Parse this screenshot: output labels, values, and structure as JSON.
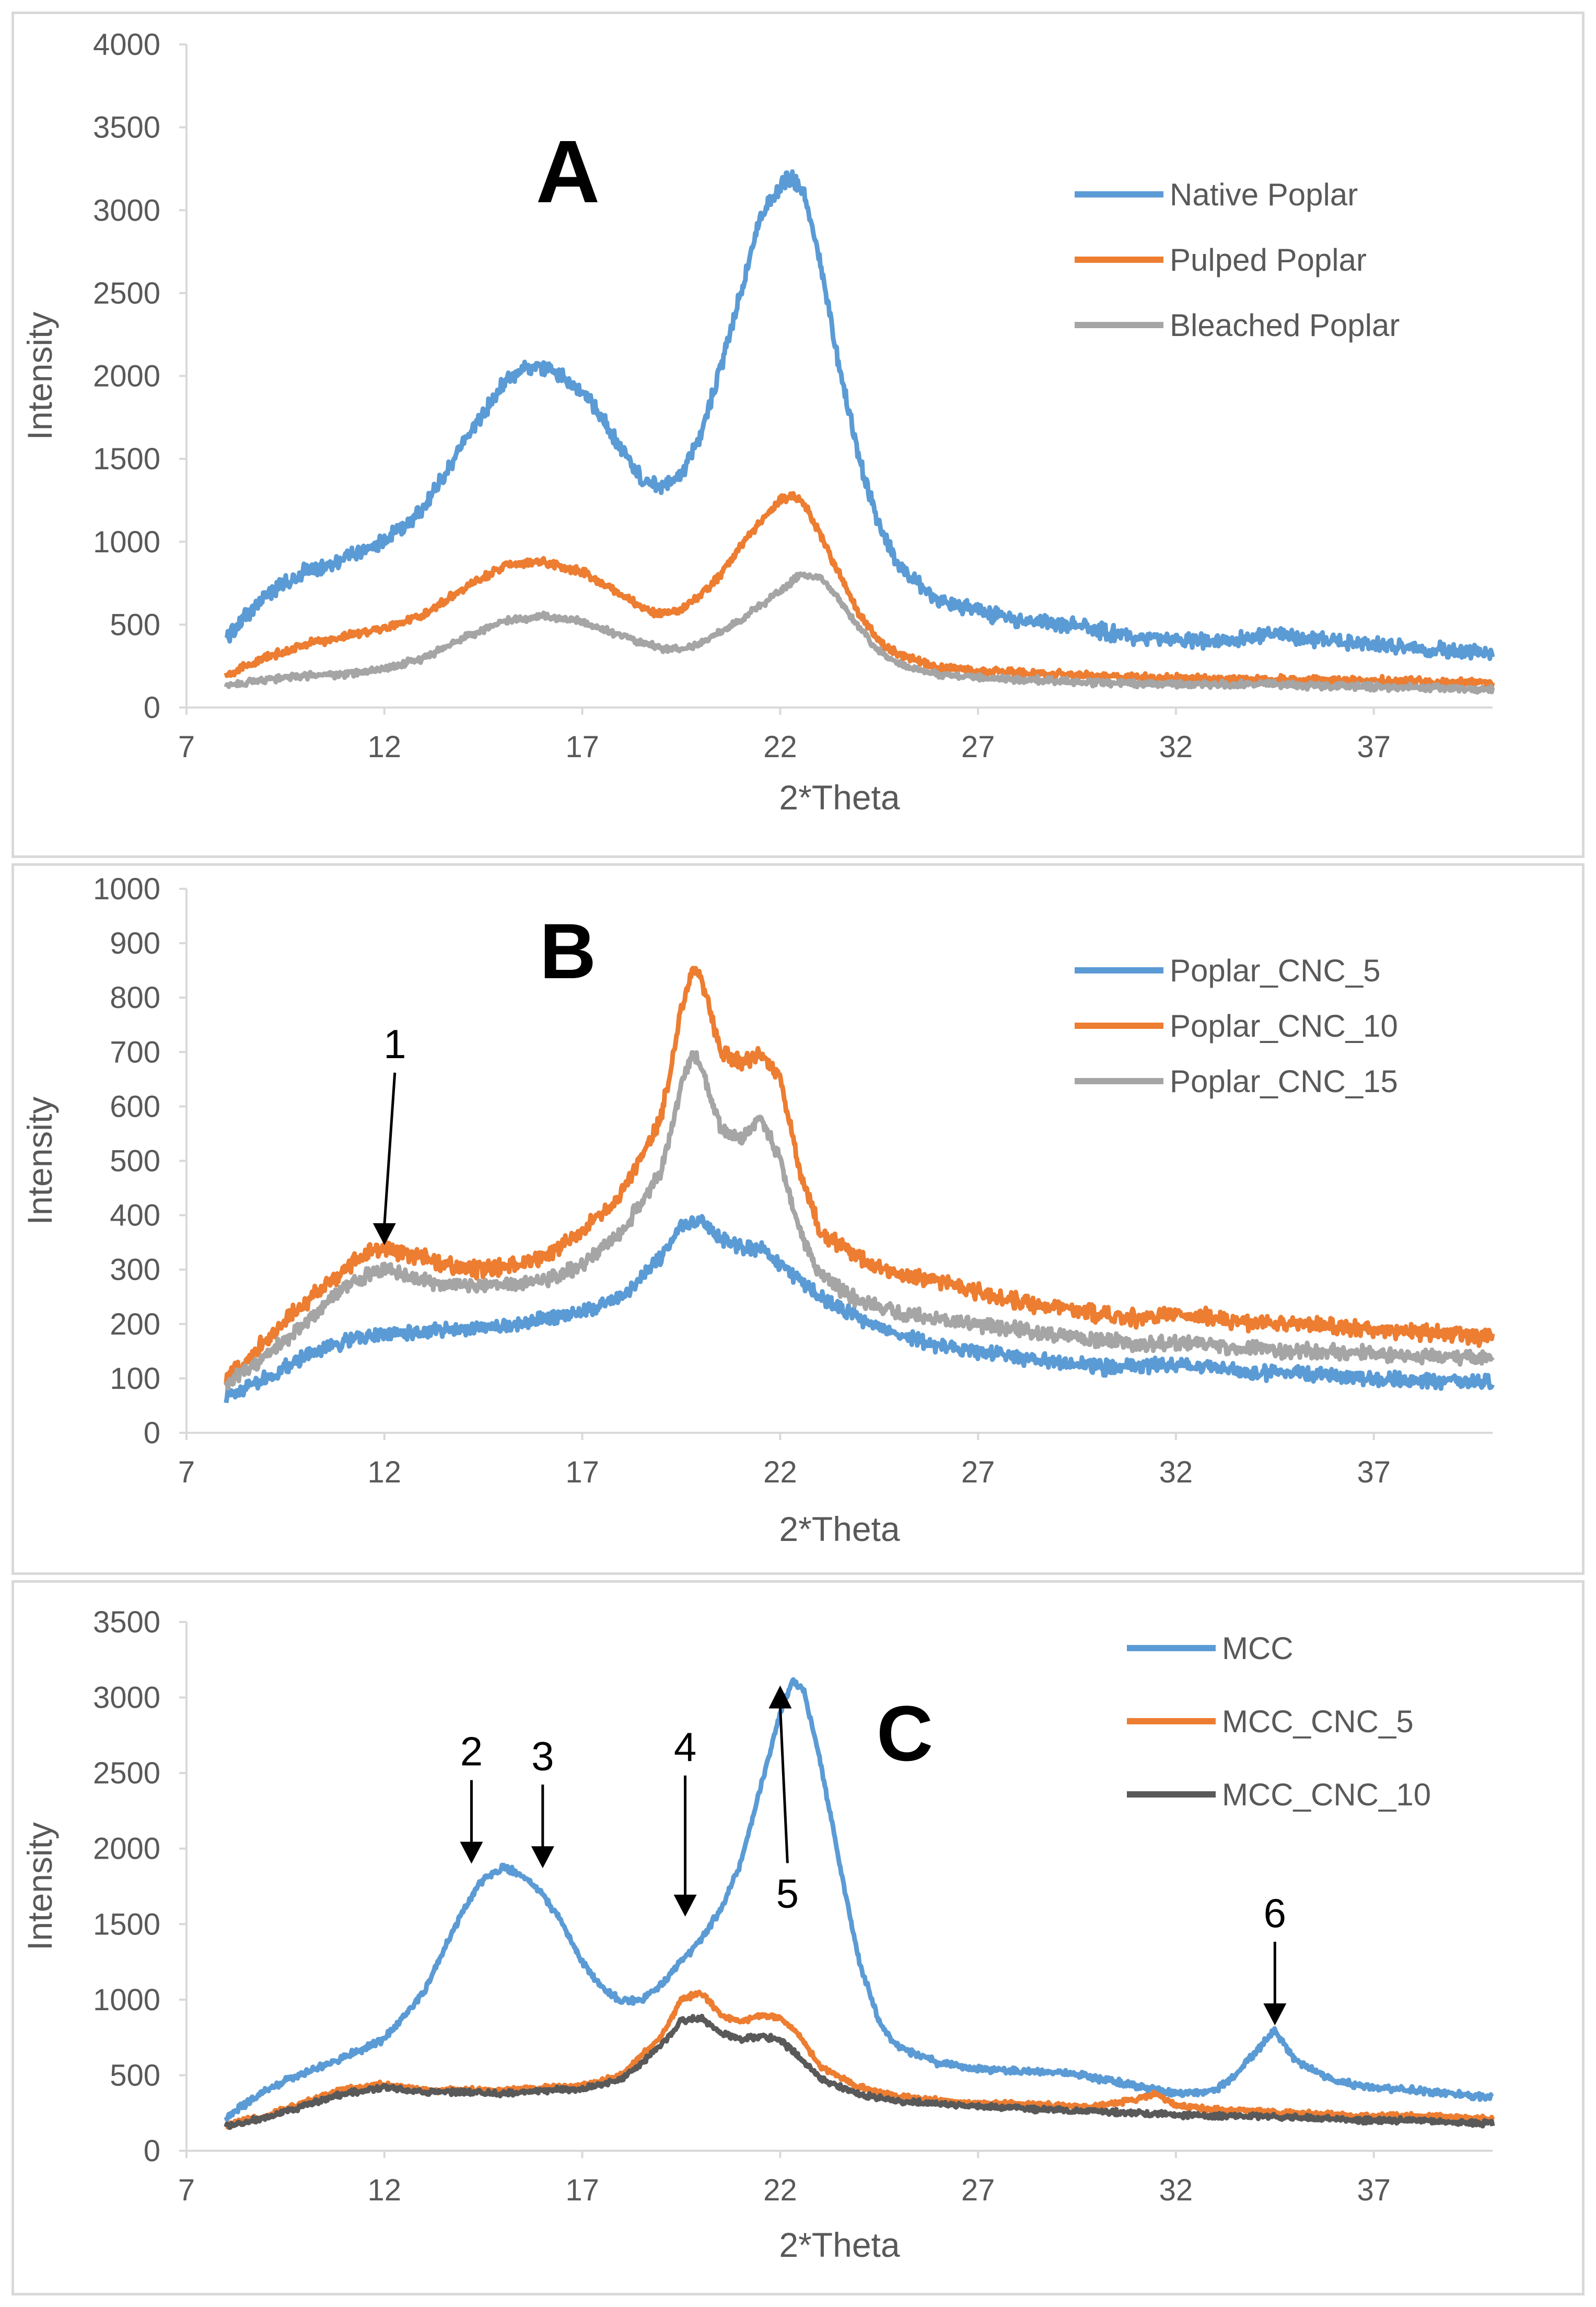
{
  "chart_data": [
    {
      "id": "A",
      "type": "line",
      "panel_label": "A",
      "xlabel": "2*Theta",
      "ylabel": "Intensity",
      "xlim": [
        7,
        40
      ],
      "ylim": [
        0,
        4000
      ],
      "xticks": [
        7,
        12,
        17,
        22,
        27,
        32,
        37
      ],
      "yticks": [
        0,
        500,
        1000,
        1500,
        2000,
        2500,
        3000,
        3500,
        4000
      ],
      "legend_position": "top-right",
      "series": [
        {
          "name": "Native Poplar",
          "color": "#5B9BD5",
          "noise": 55,
          "x": [
            8,
            9,
            10,
            11,
            12,
            13,
            14,
            15,
            15.5,
            16,
            16.5,
            17,
            17.5,
            18,
            18.5,
            19,
            19.5,
            20,
            20.5,
            21,
            21.5,
            22,
            22.3,
            22.6,
            23,
            23.5,
            24,
            24.5,
            25,
            26,
            27,
            28,
            29,
            30,
            31,
            32,
            33,
            34,
            34.5,
            35,
            36,
            37,
            38,
            39,
            40
          ],
          "y": [
            420,
            680,
            820,
            900,
            1000,
            1200,
            1600,
            1950,
            2050,
            2050,
            2000,
            1900,
            1750,
            1550,
            1380,
            1320,
            1400,
            1650,
            2050,
            2500,
            2950,
            3150,
            3200,
            3100,
            2700,
            2050,
            1500,
            1100,
            850,
            650,
            580,
            530,
            510,
            470,
            420,
            400,
            400,
            420,
            450,
            430,
            400,
            380,
            350,
            340,
            330
          ]
        },
        {
          "name": "Pulped Poplar",
          "color": "#ED7D31",
          "noise": 28,
          "x": [
            8,
            9,
            10,
            11,
            12,
            13,
            14,
            15,
            16,
            17,
            18,
            18.5,
            19,
            19.5,
            20,
            20.5,
            21,
            21.5,
            22,
            22.3,
            22.6,
            23,
            23.5,
            24,
            24.5,
            25,
            26,
            27,
            28,
            30,
            32,
            34,
            36,
            38,
            40
          ],
          "y": [
            200,
            300,
            380,
            430,
            480,
            560,
            720,
            850,
            880,
            820,
            680,
            600,
            560,
            590,
            680,
            800,
            980,
            1120,
            1250,
            1280,
            1230,
            1050,
            800,
            560,
            400,
            320,
            240,
            220,
            210,
            190,
            175,
            170,
            165,
            160,
            150
          ]
        },
        {
          "name": "Bleached Poplar",
          "color": "#A5A5A5",
          "noise": 24,
          "x": [
            8,
            9,
            10,
            11,
            12,
            13,
            14,
            15,
            16,
            17,
            18,
            19,
            19.5,
            20,
            21,
            22,
            22.5,
            23,
            23.5,
            24,
            24.5,
            25,
            26,
            27,
            28,
            30,
            32,
            34,
            36,
            38,
            40
          ],
          "y": [
            130,
            170,
            190,
            200,
            230,
            300,
            420,
            520,
            550,
            520,
            430,
            360,
            350,
            390,
            530,
            700,
            800,
            790,
            650,
            480,
            340,
            260,
            200,
            180,
            170,
            150,
            140,
            140,
            130,
            120,
            110
          ]
        }
      ]
    },
    {
      "id": "B",
      "type": "line",
      "panel_label": "B",
      "xlabel": "2*Theta",
      "ylabel": "Intensity",
      "xlim": [
        7,
        40
      ],
      "ylim": [
        0,
        1000
      ],
      "xticks": [
        7,
        12,
        17,
        22,
        27,
        32,
        37
      ],
      "yticks": [
        0,
        100,
        200,
        300,
        400,
        500,
        600,
        700,
        800,
        900,
        1000
      ],
      "legend_position": "top-right",
      "annotations": [
        {
          "label": "1",
          "x": 12,
          "y": 345
        }
      ],
      "series": [
        {
          "name": "Poplar_CNC_5",
          "color": "#5B9BD5",
          "noise": 16,
          "x": [
            8,
            9,
            10,
            11,
            12,
            13,
            14,
            15,
            16,
            17,
            18,
            19,
            19.5,
            20,
            20.5,
            21,
            21.5,
            22,
            22.5,
            23,
            24,
            25,
            26,
            27,
            28,
            29,
            30,
            31,
            32,
            33,
            34,
            35,
            36,
            37,
            38,
            39,
            40
          ],
          "y": [
            70,
            100,
            140,
            170,
            180,
            185,
            190,
            195,
            210,
            220,
            250,
            320,
            380,
            390,
            360,
            340,
            340,
            310,
            280,
            250,
            210,
            180,
            160,
            150,
            140,
            130,
            120,
            120,
            125,
            120,
            110,
            110,
            105,
            100,
            95,
            95,
            90
          ]
        },
        {
          "name": "Poplar_CNC_10",
          "color": "#ED7D31",
          "noise": 18,
          "x": [
            8,
            9,
            10,
            11,
            11.5,
            12,
            13,
            14,
            15,
            16,
            17,
            18,
            19,
            19.5,
            19.8,
            20,
            20.5,
            21,
            21.5,
            22,
            22.5,
            23,
            24,
            25,
            26,
            27,
            28,
            29,
            30,
            31,
            32,
            33,
            34,
            35,
            36,
            37,
            38,
            39,
            40
          ],
          "y": [
            100,
            170,
            240,
            300,
            330,
            340,
            320,
            300,
            305,
            320,
            370,
            440,
            580,
            780,
            860,
            840,
            700,
            680,
            700,
            650,
            480,
            370,
            320,
            290,
            280,
            260,
            240,
            230,
            220,
            210,
            220,
            210,
            200,
            200,
            195,
            190,
            185,
            180,
            175
          ]
        },
        {
          "name": "Poplar_CNC_15",
          "color": "#A5A5A5",
          "noise": 16,
          "x": [
            8,
            9,
            10,
            11,
            12,
            13,
            14,
            15,
            16,
            17,
            18,
            19,
            19.5,
            19.8,
            20,
            20.5,
            21,
            21.5,
            22,
            22.5,
            23,
            24,
            25,
            26,
            27,
            28,
            29,
            30,
            31,
            32,
            33,
            34,
            35,
            36,
            37,
            38,
            39,
            40
          ],
          "y": [
            90,
            140,
            200,
            270,
            300,
            280,
            270,
            270,
            280,
            310,
            370,
            480,
            640,
            700,
            670,
            560,
            540,
            580,
            500,
            370,
            290,
            240,
            220,
            210,
            200,
            190,
            180,
            170,
            165,
            165,
            160,
            155,
            150,
            150,
            145,
            140,
            140,
            135
          ]
        }
      ]
    },
    {
      "id": "C",
      "type": "line",
      "panel_label": "C",
      "xlabel": "2*Theta",
      "ylabel": "Intensity",
      "xlim": [
        7,
        40
      ],
      "ylim": [
        0,
        3500
      ],
      "xticks": [
        7,
        12,
        17,
        22,
        27,
        32,
        37
      ],
      "yticks": [
        0,
        500,
        1000,
        1500,
        2000,
        2500,
        3000,
        3500
      ],
      "legend_position": "top-right",
      "annotations": [
        {
          "label": "2",
          "x": 14.2,
          "y": 1900
        },
        {
          "label": "3",
          "x": 16.0,
          "y": 1870
        },
        {
          "label": "4",
          "x": 19.6,
          "y": 1550
        },
        {
          "label": "5",
          "x": 22.0,
          "y": 3080
        },
        {
          "label": "6",
          "x": 34.5,
          "y": 830
        }
      ],
      "series": [
        {
          "name": "MCC",
          "color": "#5B9BD5",
          "noise": 26,
          "x": [
            8,
            9,
            10,
            11,
            12,
            13,
            14,
            14.5,
            15,
            15.5,
            16,
            16.5,
            17,
            17.5,
            18,
            18.5,
            19,
            19.5,
            20,
            20.5,
            21,
            21.5,
            22,
            22.3,
            22.6,
            23,
            23.5,
            24,
            24.5,
            25,
            26,
            27,
            28,
            29,
            30,
            31,
            32,
            33,
            33.5,
            34,
            34.5,
            35,
            36,
            37,
            38,
            39,
            40
          ],
          "y": [
            220,
            400,
            520,
            620,
            740,
            1050,
            1600,
            1800,
            1880,
            1820,
            1700,
            1500,
            1250,
            1080,
            990,
            1000,
            1100,
            1250,
            1400,
            1600,
            1900,
            2400,
            2900,
            3100,
            3050,
            2600,
            1900,
            1250,
            850,
            680,
            580,
            540,
            530,
            520,
            480,
            430,
            380,
            400,
            500,
            650,
            800,
            600,
            460,
            420,
            400,
            380,
            350
          ]
        },
        {
          "name": "MCC_CNC_5",
          "color": "#ED7D31",
          "noise": 22,
          "x": [
            8,
            9,
            10,
            11,
            12,
            13,
            14,
            15,
            16,
            17,
            18,
            19,
            19.5,
            20,
            20.5,
            21,
            21.5,
            22,
            22.5,
            23,
            24,
            25,
            26,
            27,
            28,
            29,
            30,
            31,
            31.5,
            32,
            33,
            34,
            35,
            36,
            37,
            38,
            39,
            40
          ],
          "y": [
            170,
            230,
            320,
            410,
            440,
            400,
            400,
            400,
            420,
            430,
            500,
            760,
            1000,
            1050,
            900,
            850,
            900,
            880,
            760,
            560,
            420,
            360,
            330,
            310,
            310,
            300,
            290,
            340,
            380,
            300,
            270,
            260,
            250,
            240,
            230,
            230,
            220,
            210
          ]
        },
        {
          "name": "MCC_CNC_10",
          "color": "#595959",
          "noise": 22,
          "x": [
            8,
            9,
            10,
            11,
            12,
            13,
            14,
            15,
            16,
            17,
            18,
            19,
            19.5,
            20,
            20.5,
            21,
            21.5,
            22,
            22.5,
            23,
            24,
            25,
            26,
            27,
            28,
            29,
            30,
            31,
            32,
            33,
            34,
            35,
            36,
            37,
            38,
            39,
            40
          ],
          "y": [
            160,
            220,
            300,
            380,
            420,
            390,
            390,
            380,
            400,
            410,
            470,
            700,
            860,
            880,
            780,
            740,
            760,
            730,
            620,
            480,
            370,
            330,
            310,
            290,
            280,
            270,
            260,
            250,
            240,
            230,
            230,
            220,
            210,
            200,
            200,
            190,
            180
          ]
        }
      ]
    }
  ]
}
